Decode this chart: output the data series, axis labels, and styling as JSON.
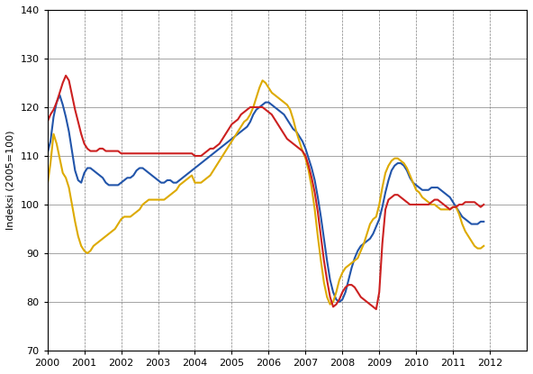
{
  "title": "",
  "ylabel": "Indeksi (2005=100)",
  "xlabel": "",
  "ylim": [
    70,
    140
  ],
  "yticks": [
    70,
    80,
    90,
    100,
    110,
    120,
    130,
    140
  ],
  "colors": {
    "blue": "#2255AA",
    "yellow": "#DDAA00",
    "red": "#CC2020"
  },
  "blue": [
    110.5,
    113.0,
    118.0,
    121.0,
    122.5,
    120.5,
    118.0,
    115.0,
    111.0,
    107.0,
    105.0,
    104.5,
    106.5,
    107.5,
    107.5,
    107.0,
    106.5,
    106.0,
    105.5,
    104.5,
    104.0,
    104.0,
    104.0,
    104.0,
    104.5,
    105.0,
    105.5,
    105.5,
    106.0,
    107.0,
    107.5,
    107.5,
    107.0,
    106.5,
    106.0,
    105.5,
    105.0,
    104.5,
    104.5,
    105.0,
    105.0,
    104.5,
    104.5,
    105.0,
    105.5,
    106.0,
    106.5,
    107.0,
    107.5,
    108.0,
    108.5,
    109.0,
    109.5,
    110.0,
    110.5,
    111.0,
    111.5,
    112.0,
    112.5,
    113.0,
    113.5,
    114.0,
    114.5,
    115.0,
    115.5,
    116.0,
    117.0,
    118.5,
    119.5,
    120.0,
    120.5,
    121.0,
    121.0,
    120.5,
    120.0,
    119.5,
    119.0,
    118.5,
    117.5,
    116.5,
    115.5,
    115.0,
    114.0,
    113.0,
    111.5,
    109.5,
    107.5,
    105.0,
    101.5,
    97.5,
    93.0,
    88.5,
    84.5,
    82.0,
    80.5,
    80.0,
    80.5,
    82.0,
    84.5,
    87.0,
    89.0,
    90.5,
    91.5,
    92.0,
    92.5,
    93.0,
    94.0,
    95.5,
    97.0,
    99.5,
    102.5,
    105.0,
    107.0,
    108.0,
    108.5,
    108.5,
    108.0,
    107.0,
    105.5,
    104.5,
    104.0,
    103.5,
    103.0,
    103.0,
    103.0,
    103.5,
    103.5,
    103.5,
    103.0,
    102.5,
    102.0,
    101.5,
    100.5,
    99.5,
    98.5,
    97.5,
    97.0,
    96.5,
    96.0,
    96.0,
    96.0,
    96.5,
    96.5
  ],
  "yellow": [
    104.0,
    108.5,
    114.5,
    112.5,
    109.5,
    106.5,
    105.5,
    103.5,
    100.0,
    96.5,
    93.5,
    91.5,
    90.5,
    90.0,
    90.5,
    91.5,
    92.0,
    92.5,
    93.0,
    93.5,
    94.0,
    94.5,
    95.0,
    96.0,
    97.0,
    97.5,
    97.5,
    97.5,
    98.0,
    98.5,
    99.0,
    100.0,
    100.5,
    101.0,
    101.0,
    101.0,
    101.0,
    101.0,
    101.0,
    101.5,
    102.0,
    102.5,
    103.0,
    104.0,
    104.5,
    105.0,
    105.5,
    106.0,
    104.5,
    104.5,
    104.5,
    105.0,
    105.5,
    106.0,
    107.0,
    108.0,
    109.0,
    110.0,
    111.0,
    112.0,
    113.0,
    114.0,
    115.0,
    116.0,
    117.0,
    117.5,
    118.5,
    120.0,
    122.0,
    124.0,
    125.5,
    125.0,
    124.0,
    123.0,
    122.5,
    122.0,
    121.5,
    121.0,
    120.5,
    119.5,
    117.5,
    115.0,
    113.0,
    111.0,
    109.5,
    107.0,
    103.5,
    99.0,
    93.5,
    88.5,
    84.0,
    81.0,
    79.5,
    80.0,
    82.0,
    84.5,
    86.0,
    87.0,
    87.5,
    88.0,
    88.5,
    89.0,
    90.5,
    92.0,
    94.0,
    96.0,
    97.0,
    97.5,
    100.0,
    103.5,
    106.5,
    108.0,
    109.0,
    109.5,
    109.5,
    109.0,
    108.5,
    107.5,
    106.0,
    104.5,
    103.0,
    102.5,
    101.5,
    101.0,
    100.5,
    100.0,
    100.0,
    99.5,
    99.0,
    99.0,
    99.0,
    99.0,
    99.5,
    99.5,
    98.0,
    96.0,
    94.5,
    93.5,
    92.5,
    91.5,
    91.0,
    91.0,
    91.5
  ],
  "red": [
    117.0,
    118.5,
    119.5,
    121.0,
    123.0,
    125.0,
    126.5,
    125.5,
    122.5,
    119.5,
    117.0,
    114.5,
    112.5,
    111.5,
    111.0,
    111.0,
    111.0,
    111.5,
    111.5,
    111.0,
    111.0,
    111.0,
    111.0,
    111.0,
    110.5,
    110.5,
    110.5,
    110.5,
    110.5,
    110.5,
    110.5,
    110.5,
    110.5,
    110.5,
    110.5,
    110.5,
    110.5,
    110.5,
    110.5,
    110.5,
    110.5,
    110.5,
    110.5,
    110.5,
    110.5,
    110.5,
    110.5,
    110.5,
    110.0,
    110.0,
    110.0,
    110.5,
    111.0,
    111.5,
    111.5,
    112.0,
    112.5,
    113.5,
    114.5,
    115.5,
    116.5,
    117.0,
    117.5,
    118.5,
    119.0,
    119.5,
    120.0,
    120.0,
    120.0,
    120.0,
    120.0,
    119.5,
    119.0,
    118.5,
    117.5,
    116.5,
    115.5,
    114.5,
    113.5,
    113.0,
    112.5,
    112.0,
    111.5,
    111.0,
    110.0,
    108.0,
    105.5,
    102.5,
    98.5,
    93.5,
    88.5,
    84.5,
    81.0,
    79.0,
    79.5,
    80.5,
    82.0,
    83.0,
    83.5,
    83.5,
    83.0,
    82.0,
    81.0,
    80.5,
    80.0,
    79.5,
    79.0,
    78.5,
    82.0,
    92.0,
    99.0,
    101.0,
    101.5,
    102.0,
    102.0,
    101.5,
    101.0,
    100.5,
    100.0,
    100.0,
    100.0,
    100.0,
    100.0,
    100.0,
    100.0,
    100.5,
    101.0,
    101.0,
    100.5,
    100.0,
    99.5,
    99.0,
    99.5,
    99.5,
    100.0,
    100.0,
    100.5,
    100.5,
    100.5,
    100.5,
    100.0,
    99.5,
    100.0
  ],
  "start_year": 2000,
  "start_month": 1,
  "end_year": 2012,
  "end_month": 11,
  "xtick_years": [
    2000,
    2001,
    2002,
    2003,
    2004,
    2005,
    2006,
    2007,
    2008,
    2009,
    2010,
    2011,
    2012
  ],
  "background_color": "#FFFFFF",
  "grid_color": "#808080",
  "line_width": 1.5
}
